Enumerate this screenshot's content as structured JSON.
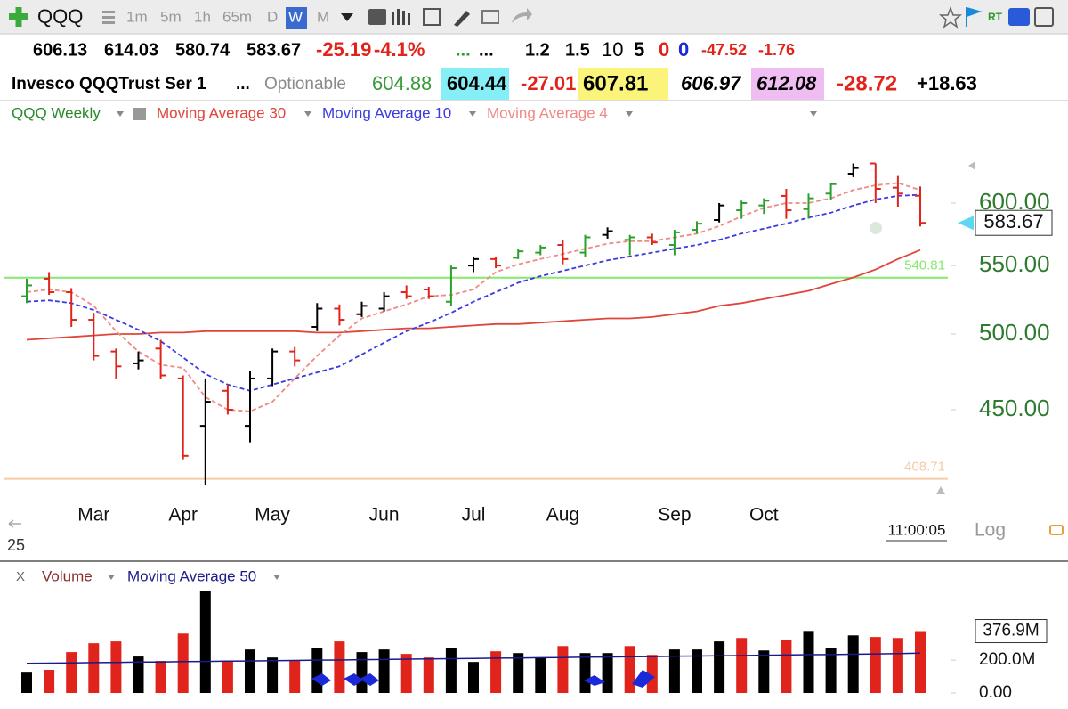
{
  "toolbar": {
    "symbol": "QQQ",
    "intervals": [
      "1m",
      "5m",
      "1h",
      "65m",
      "D",
      "W",
      "M"
    ],
    "active": 5
  },
  "quote_row_1": [
    {
      "text": "606.13",
      "color": "#000000"
    },
    {
      "text": "614.03",
      "color": "#000000"
    },
    {
      "text": "580.74",
      "color": "#000000"
    },
    {
      "text": "583.67",
      "color": "#000000"
    },
    {
      "text": "-25.19",
      "color": "#e0241b"
    },
    {
      "text": "-4.1%",
      "color": "#e0241b"
    },
    {
      "text": "...",
      "color": "#2a9a2a"
    },
    {
      "text": "...",
      "color": "#000000"
    },
    {
      "text": "1.2",
      "color": "#000000"
    },
    {
      "text": "1.5",
      "color": "#000000"
    },
    {
      "text": "10",
      "color": "#000000"
    },
    {
      "text": "5",
      "color": "#000000"
    },
    {
      "text": "0",
      "color": "#e0241b"
    },
    {
      "text": "0",
      "color": "#1a2ad8"
    },
    {
      "text": "-47.52",
      "color": "#e0241b"
    },
    {
      "text": "-1.76",
      "color": "#e0241b"
    }
  ],
  "quote_row_2": [
    {
      "text": "Invesco QQQTrust Ser 1",
      "color": "#000000"
    },
    {
      "text": "...",
      "color": "#000000"
    },
    {
      "text": "Optionable",
      "color": "#8a8a8a"
    },
    {
      "text": "604.88",
      "color": "#3a9a3a"
    },
    {
      "text": "604.44",
      "color": "#000000",
      "background": "#86eef6"
    },
    {
      "text": "-27.01",
      "color": "#e0241b"
    },
    {
      "text": "607.81",
      "color": "#000000",
      "background": "#fbf47a"
    },
    {
      "text": "606.97",
      "color": "#000000"
    },
    {
      "text": "612.08",
      "color": "#000000",
      "background": "#efbdf2"
    },
    {
      "text": "-28.72",
      "color": "#e0241b"
    },
    {
      "text": "+18.63",
      "color": "#000000"
    }
  ],
  "chart_data": [
    {
      "type": "ohlc",
      "title": "QQQ Weekly",
      "categories": [
        null,
        null,
        null,
        "Mar",
        null,
        null,
        null,
        "Apr",
        null,
        null,
        null,
        "May",
        null,
        null,
        null,
        null,
        "Jun",
        null,
        null,
        null,
        "Jul",
        null,
        null,
        null,
        "Aug",
        null,
        null,
        null,
        null,
        "Sep",
        null,
        null,
        null,
        "Oct",
        null,
        null,
        null,
        null,
        null,
        null,
        null
      ],
      "ohlc": [
        [
          527,
          540,
          522,
          535
        ],
        [
          540,
          545,
          528,
          530
        ],
        [
          530,
          533,
          505,
          510
        ],
        [
          510,
          515,
          482,
          485
        ],
        [
          488,
          490,
          470,
          478
        ],
        [
          480,
          488,
          476,
          482
        ],
        [
          490,
          496,
          470,
          472
        ],
        [
          470,
          472,
          420,
          422
        ],
        [
          440,
          470,
          405,
          455
        ],
        [
          462,
          466,
          447,
          450
        ],
        [
          440,
          475,
          430,
          470
        ],
        [
          470,
          490,
          465,
          488
        ],
        [
          488,
          491,
          478,
          482
        ],
        [
          505,
          522,
          502,
          518
        ],
        [
          518,
          521,
          506,
          510
        ],
        [
          514,
          523,
          512,
          520
        ],
        [
          518,
          530,
          516,
          527
        ],
        [
          530,
          535,
          525,
          527
        ],
        [
          532,
          534,
          525,
          527
        ],
        [
          523,
          550,
          520,
          548
        ],
        [
          550,
          557,
          545,
          555
        ],
        [
          555,
          557,
          548,
          550
        ],
        [
          556,
          563,
          555,
          561
        ],
        [
          560,
          566,
          558,
          564
        ],
        [
          566,
          570,
          551,
          555
        ],
        [
          560,
          574,
          557,
          572
        ],
        [
          574,
          580,
          571,
          577
        ],
        [
          570,
          574,
          558,
          572
        ],
        [
          572,
          575,
          566,
          568
        ],
        [
          566,
          578,
          558,
          576
        ],
        [
          578,
          585,
          575,
          583
        ],
        [
          586,
          600,
          584,
          598
        ],
        [
          594,
          602,
          587,
          600
        ],
        [
          598,
          604,
          591,
          602
        ],
        [
          606,
          612,
          587,
          594
        ],
        [
          595,
          608,
          587,
          604
        ],
        [
          608,
          617,
          603,
          616
        ],
        [
          625,
          634,
          622,
          630
        ],
        [
          634,
          634,
          600,
          612
        ],
        [
          613,
          623,
          597,
          608
        ],
        [
          606.13,
          614.03,
          580.74,
          583.67
        ]
      ],
      "bar_colors": [
        "#2ca02c",
        "#e0241b",
        "#e0241b",
        "#e0241b",
        "#e0241b",
        "#000000",
        "#e0241b",
        "#e0241b",
        "#000000",
        "#e0241b",
        "#000000",
        "#000000",
        "#e0241b",
        "#000000",
        "#e0241b",
        "#000000",
        "#000000",
        "#e0241b",
        "#e0241b",
        "#2ca02c",
        "#000000",
        "#e0241b",
        "#2ca02c",
        "#2ca02c",
        "#e0241b",
        "#2ca02c",
        "#000000",
        "#2ca02c",
        "#e0241b",
        "#2ca02c",
        "#2ca02c",
        "#000000",
        "#2ca02c",
        "#2ca02c",
        "#e0241b",
        "#2ca02c",
        "#2ca02c",
        "#000000",
        "#e0241b",
        "#e0241b",
        "#e0241b"
      ],
      "series": [
        {
          "name": "Moving Average 30",
          "color": "#e0453a",
          "dash": false,
          "values": [
            496,
            497,
            498,
            499,
            500,
            500,
            501,
            501,
            502,
            502,
            502,
            502,
            502,
            501,
            501,
            502,
            503,
            504,
            504,
            505,
            506,
            507,
            507,
            508,
            509,
            510,
            511,
            511,
            512,
            514,
            516,
            520,
            522,
            525,
            528,
            531,
            536,
            541,
            547,
            555,
            562
          ]
        },
        {
          "name": "Moving Average 10",
          "color": "#3a3ae0",
          "dash": true,
          "values": [
            523,
            524,
            522,
            517,
            510,
            503,
            495,
            484,
            473,
            466,
            462,
            466,
            470,
            474,
            478,
            486,
            494,
            502,
            508,
            515,
            523,
            530,
            537,
            542,
            546,
            550,
            554,
            557,
            560,
            563,
            566,
            570,
            575,
            579,
            583,
            588,
            592,
            598,
            603,
            606,
            607
          ]
        },
        {
          "name": "Moving Average 4",
          "color": "#ef8a84",
          "dash": true,
          "values": [
            530,
            532,
            530,
            520,
            502,
            488,
            479,
            477,
            458,
            450,
            449,
            455,
            470,
            485,
            499,
            511,
            516,
            521,
            527,
            528,
            532,
            545,
            551,
            555,
            559,
            563,
            567,
            569,
            569,
            572,
            575,
            581,
            589,
            596,
            600,
            600,
            604,
            611,
            615,
            617,
            611
          ]
        }
      ],
      "ylim": [
        400,
        665
      ],
      "log": true,
      "yticks": [
        {
          "value": 450,
          "label": "450.00"
        },
        {
          "value": 500,
          "label": "500.00"
        },
        {
          "value": 550,
          "label": "550.00"
        },
        {
          "value": 600,
          "label": "600.00"
        }
      ],
      "yticks_color": "#2e7a2e",
      "hlines": [
        {
          "value": 540.81,
          "label": "540.81",
          "color": "#86e86e"
        },
        {
          "value": 408.71,
          "label": "408.71",
          "color": "#f6cba6"
        }
      ],
      "time_label": "11:00:05",
      "scale_label": "Log",
      "corner_label": "25"
    },
    {
      "type": "bar",
      "title": "Volume",
      "close_label": "X",
      "values": [
        124,
        141,
        249,
        303,
        314,
        222,
        195,
        362,
        622,
        195,
        265,
        216,
        195,
        276,
        314,
        249,
        265,
        238,
        216,
        276,
        189,
        254,
        243,
        216,
        286,
        243,
        243,
        286,
        232,
        265,
        265,
        314,
        335,
        259,
        324,
        378,
        276,
        351,
        341,
        335,
        376.9
      ],
      "value_labels": [
        null,
        null,
        null,
        null,
        null,
        null,
        null,
        null,
        null,
        null,
        null,
        null,
        null,
        null,
        null,
        null,
        null,
        null,
        null,
        null,
        null,
        null,
        null,
        null,
        null,
        null,
        null,
        null,
        null,
        null,
        null,
        null,
        null,
        null,
        null,
        null,
        null,
        null,
        null,
        null,
        "376.9M"
      ],
      "colors": [
        "#000000",
        "#e0241b",
        "#e0241b",
        "#e0241b",
        "#e0241b",
        "#000000",
        "#e0241b",
        "#e0241b",
        "#000000",
        "#e0241b",
        "#000000",
        "#000000",
        "#e0241b",
        "#000000",
        "#e0241b",
        "#000000",
        "#000000",
        "#e0241b",
        "#e0241b",
        "#000000",
        "#000000",
        "#e0241b",
        "#000000",
        "#000000",
        "#e0241b",
        "#000000",
        "#000000",
        "#e0241b",
        "#e0241b",
        "#000000",
        "#000000",
        "#000000",
        "#e0241b",
        "#000000",
        "#e0241b",
        "#000000",
        "#000000",
        "#000000",
        "#e0241b",
        "#e0241b",
        "#e0241b"
      ],
      "series": [
        {
          "name": "Moving Average 50",
          "color": "#1a1a8a",
          "values": [
            180,
            182,
            183,
            185,
            186,
            188,
            189,
            191,
            192,
            194,
            195,
            197,
            198,
            200,
            201,
            203,
            204,
            206,
            207,
            209,
            210,
            212,
            213,
            215,
            216,
            218,
            219,
            221,
            222,
            224,
            225,
            227,
            228,
            230,
            231,
            233,
            234,
            236,
            238,
            240,
            243
          ]
        }
      ],
      "ylim": [
        -65,
        640
      ],
      "yticks": [
        {
          "value": 0,
          "label": "0.00"
        },
        {
          "value": 200,
          "label": "200.0M"
        }
      ]
    }
  ]
}
